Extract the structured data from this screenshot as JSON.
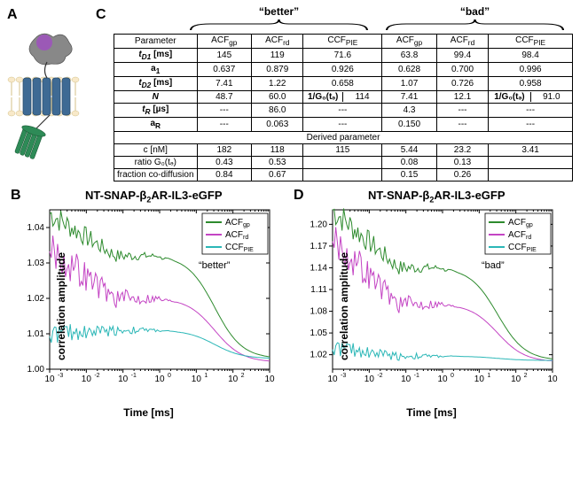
{
  "labels": {
    "A": "A",
    "B": "B",
    "C": "C",
    "D": "D"
  },
  "diagramA": {
    "purple": "#9b59b6",
    "gray": "#888888",
    "blue": "#3e6a94",
    "green": "#2e8b57",
    "membrane": "#f8e9c9",
    "membrane_line": "#d4c28a"
  },
  "table": {
    "group_better": "“better”",
    "group_bad": "“bad”",
    "header_param": "Parameter",
    "cols": [
      "ACF",
      "ACF",
      "CCF",
      "ACF",
      "ACF",
      "CCF"
    ],
    "col_sub": [
      "gp",
      "rd",
      "PIE",
      "gp",
      "rd",
      "PIE"
    ],
    "rows": [
      {
        "name": "t",
        "sub": "D1",
        "unit": " [ms]",
        "ital": true,
        "bold": true,
        "vals": [
          "145",
          "119",
          "71.6",
          "63.8",
          "99.4",
          "98.4"
        ]
      },
      {
        "name": "a",
        "sub": "1",
        "unit": "",
        "ital": false,
        "bold": true,
        "vals": [
          "0.637",
          "0.879",
          "0.926",
          "0.628",
          "0.700",
          "0.996"
        ]
      },
      {
        "name": "t",
        "sub": "D2",
        "unit": " [ms]",
        "ital": true,
        "bold": true,
        "vals": [
          "7.41",
          "1.22",
          "0.658",
          "1.07",
          "0.726",
          "0.958"
        ]
      },
      {
        "name": "N",
        "sub": "",
        "unit": "",
        "ital": true,
        "bold": true,
        "vals": [
          "48.7",
          "60.0",
          {
            "split": [
              "1/G₀(tₔ)",
              "114"
            ]
          },
          "7.41",
          "12.1",
          {
            "split": [
              "1/G₀(tₔ)",
              "91.0"
            ]
          }
        ]
      },
      {
        "name": "t",
        "sub": "R",
        "unit": " [µs]",
        "ital": true,
        "bold": true,
        "vals": [
          "---",
          "86.0",
          "---",
          "4.3",
          "---",
          "---"
        ]
      },
      {
        "name": "a",
        "sub": "R",
        "unit": "",
        "ital": false,
        "bold": true,
        "vals": [
          "---",
          "0.063",
          "---",
          "0.150",
          "---",
          "---"
        ]
      }
    ],
    "derived_header": "Derived parameter",
    "derived_rows": [
      {
        "name": "c [nM]",
        "vals": [
          "182",
          "118",
          "115",
          "5.44",
          "23.2",
          "3.41"
        ]
      },
      {
        "name": "ratio G₀(tₔ)",
        "vals": [
          "0.43",
          "0.53",
          "",
          "0.08",
          "0.13",
          ""
        ]
      },
      {
        "name": "fraction co-diffusion",
        "vals": [
          "0.84",
          "0.67",
          "",
          "0.15",
          "0.26",
          ""
        ]
      }
    ]
  },
  "charts": {
    "title_html": "NT-SNAP-β₂AR-IL3-eGFP",
    "ylabel": "correlation amplitude",
    "xlabel": "Time [ms]",
    "legend": [
      {
        "label": "ACF",
        "sub": "gp",
        "color": "#2e8b2e"
      },
      {
        "label": "ACF",
        "sub": "rd",
        "color": "#c445c4"
      },
      {
        "label": "CCF",
        "sub": "PIE",
        "color": "#2bb7b7"
      }
    ],
    "xticks": [
      "10",
      "10",
      "10",
      "10",
      "10",
      "10",
      "10"
    ],
    "xexp": [
      "-3",
      "-2",
      "-1",
      "0",
      "1",
      "2",
      "3"
    ],
    "grid_color": "#000000",
    "B": {
      "annot": "“better”",
      "ymin": 1.0,
      "ymax": 1.045,
      "yticks": [
        "1.00",
        "1.01",
        "1.02",
        "1.03",
        "1.04"
      ],
      "ytick_vals": [
        1.0,
        1.01,
        1.02,
        1.03,
        1.04
      ],
      "series": {
        "gp": {
          "start": 1.044,
          "plateau": 1.032,
          "decay_start": 1,
          "end": 1.003,
          "noise": 0.004
        },
        "rd": {
          "start": 1.034,
          "plateau": 1.02,
          "decay_start": 1,
          "end": 1.002,
          "noise": 0.006
        },
        "ccf": {
          "start": 1.01,
          "plateau": 1.011,
          "decay_start": 1,
          "end": 1.003,
          "noise": 0.003
        }
      }
    },
    "D": {
      "annot": "“bad”",
      "ymin": 1.0,
      "ymax": 1.22,
      "yticks": [
        "1.02",
        "1.05",
        "1.08",
        "1.11",
        "1.14",
        "1.17",
        "1.20"
      ],
      "ytick_vals": [
        1.02,
        1.05,
        1.08,
        1.11,
        1.14,
        1.17,
        1.2
      ],
      "series": {
        "gp": {
          "start": 1.22,
          "plateau": 1.14,
          "decay_start": 1,
          "end": 1.012,
          "noise": 0.022
        },
        "rd": {
          "start": 1.18,
          "plateau": 1.09,
          "decay_start": 1,
          "end": 1.01,
          "noise": 0.028
        },
        "ccf": {
          "start": 1.03,
          "plateau": 1.018,
          "decay_start": 1,
          "end": 1.012,
          "noise": 0.012
        }
      }
    }
  }
}
